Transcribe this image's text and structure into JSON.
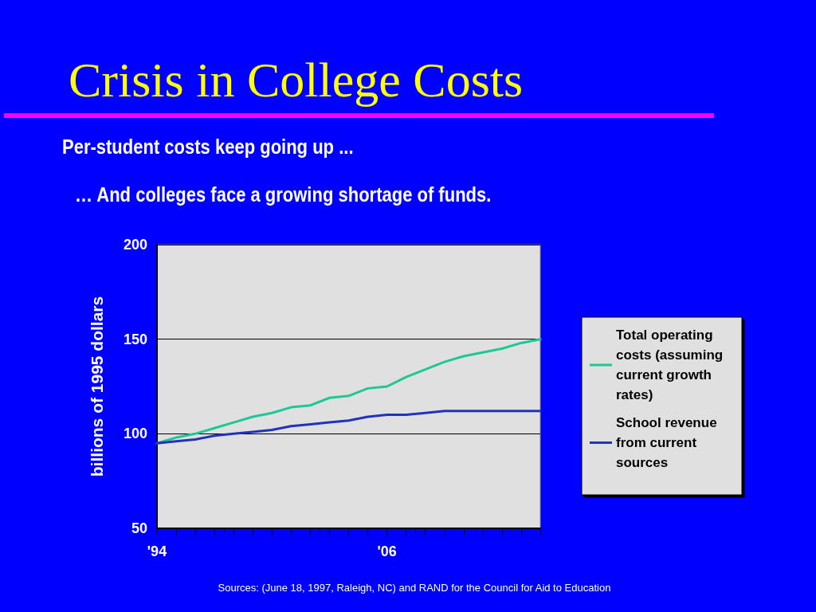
{
  "chart_data": {
    "type": "line",
    "title": "Crisis in College Costs",
    "subtitle": "Per-student costs keep going up ...\n… And colleges face a growing shortage of funds.",
    "ylabel": "billions of 1995 dollars",
    "x": [
      1994,
      1995,
      1996,
      1997,
      1998,
      1999,
      2000,
      2001,
      2002,
      2003,
      2004,
      2005,
      2006,
      2007,
      2008,
      2009,
      2010,
      2011,
      2012,
      2013,
      2014
    ],
    "series": [
      {
        "name": "Total operating costs (assuming current growth rates)",
        "color": "#1ec896",
        "values": [
          95,
          98,
          100,
          103,
          106,
          109,
          111,
          114,
          115,
          119,
          120,
          124,
          125,
          130,
          134,
          138,
          141,
          143,
          145,
          148,
          150
        ]
      },
      {
        "name": "School revenue from current sources",
        "color": "#2233bb",
        "values": [
          95,
          96,
          97,
          99,
          100,
          101,
          102,
          104,
          105,
          106,
          107,
          109,
          110,
          110,
          111,
          112,
          112,
          112,
          112,
          112,
          112
        ]
      }
    ],
    "xlim": [
      1994,
      2014
    ],
    "xticks": [
      {
        "value": 1994,
        "label": "'94"
      },
      {
        "value": 1995,
        "label": null
      },
      {
        "value": 1996,
        "label": null
      },
      {
        "value": 1997,
        "label": null
      },
      {
        "value": 1998,
        "label": null
      },
      {
        "value": 1999,
        "label": null
      },
      {
        "value": 2000,
        "label": null
      },
      {
        "value": 2001,
        "label": null
      },
      {
        "value": 2002,
        "label": null
      },
      {
        "value": 2003,
        "label": null
      },
      {
        "value": 2004,
        "label": null
      },
      {
        "value": 2005,
        "label": null
      },
      {
        "value": 2006,
        "label": "'06"
      },
      {
        "value": 2007,
        "label": null
      },
      {
        "value": 2008,
        "label": null
      },
      {
        "value": 2009,
        "label": null
      },
      {
        "value": 2010,
        "label": null
      },
      {
        "value": 2011,
        "label": null
      },
      {
        "value": 2012,
        "label": null
      },
      {
        "value": 2013,
        "label": null
      },
      {
        "value": 2014,
        "label": null
      }
    ],
    "ylim": [
      50,
      200
    ],
    "yticks": [
      50,
      100,
      150,
      200
    ],
    "grid": "y",
    "legend": "right",
    "marker": "none",
    "line_style": "solid",
    "annotations": [
      "Sources: (June 18, 1997, Raleigh, NC) and RAND for the Council for Aid to Education"
    ]
  }
}
